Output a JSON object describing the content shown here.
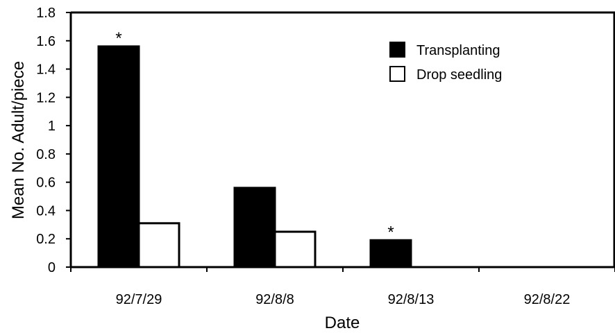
{
  "chart_data": {
    "type": "bar",
    "title": "",
    "xlabel": "Date",
    "ylabel": "Mean No. Adult/piece",
    "categories": [
      "92/7/29",
      "92/8/8",
      "92/8/13",
      "92/8/22"
    ],
    "series": [
      {
        "name": "Transplanting",
        "values": [
          1.56,
          0.56,
          0.19,
          0
        ],
        "color": "#000000",
        "annotations": [
          "*",
          "",
          "*",
          ""
        ]
      },
      {
        "name": "Drop seedling",
        "values": [
          0.31,
          0.25,
          0,
          0
        ],
        "color": "#ffffff",
        "annotations": [
          "",
          "",
          "",
          ""
        ]
      }
    ],
    "ylim": [
      0,
      1.8
    ],
    "yticks": [
      0,
      0.2,
      0.4,
      0.6,
      0.8,
      1,
      1.2,
      1.4,
      1.6,
      1.8
    ],
    "ytick_labels": [
      "0",
      "0.2",
      "0.4",
      "0.6",
      "0.8",
      "1",
      "1.2",
      "1.4",
      "1.6",
      "1.8"
    ],
    "grid": false,
    "legend": "top-right"
  }
}
